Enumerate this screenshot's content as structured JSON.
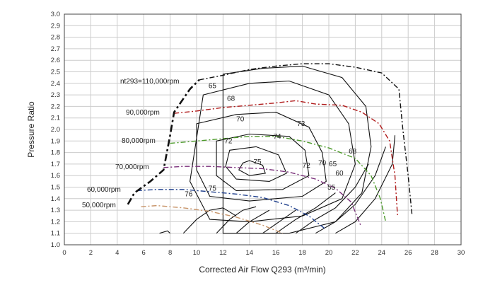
{
  "chart_data": {
    "type": "line",
    "title": "",
    "xlabel": "Corrected Air Flow Q293 (m³/min)",
    "ylabel": "Pressure Ratio",
    "xlim": [
      0,
      30
    ],
    "ylim": [
      1.0,
      3.0
    ],
    "x_ticks": [
      "0",
      "2",
      "4",
      "6",
      "8",
      "10",
      "12",
      "14",
      "16",
      "18",
      "20",
      "22",
      "24",
      "26",
      "28",
      "30"
    ],
    "y_ticks": [
      "1.0",
      "1.1",
      "1.2",
      "1.3",
      "1.4",
      "1.5",
      "1.6",
      "1.7",
      "1.8",
      "1.9",
      "2.0",
      "2.1",
      "2.2",
      "2.3",
      "2.4",
      "2.5",
      "2.6",
      "2.7",
      "2.8",
      "2.9",
      "3.0"
    ],
    "grid": true,
    "speed_lines": [
      {
        "label": "50,000rpm",
        "color": "#c8956a",
        "points": [
          [
            5.8,
            1.33
          ],
          [
            7,
            1.34
          ],
          [
            9,
            1.32
          ],
          [
            11,
            1.29
          ],
          [
            13,
            1.24
          ],
          [
            15,
            1.17
          ],
          [
            16.5,
            1.1
          ]
        ]
      },
      {
        "label": "60,000rpm",
        "color": "#1f3f8c",
        "points": [
          [
            5.5,
            1.47
          ],
          [
            7,
            1.48
          ],
          [
            9,
            1.48
          ],
          [
            11,
            1.46
          ],
          [
            13,
            1.44
          ],
          [
            15,
            1.41
          ],
          [
            17,
            1.34
          ],
          [
            18.5,
            1.25
          ],
          [
            19.7,
            1.14
          ]
        ]
      },
      {
        "label": "70,000rpm",
        "color": "#7a2f7a",
        "points": [
          [
            7.5,
            1.67
          ],
          [
            9,
            1.68
          ],
          [
            11,
            1.68
          ],
          [
            13,
            1.67
          ],
          [
            15,
            1.66
          ],
          [
            17,
            1.63
          ],
          [
            19,
            1.57
          ],
          [
            20.5,
            1.49
          ],
          [
            21.7,
            1.37
          ],
          [
            22.4,
            1.17
          ]
        ]
      },
      {
        "label": "80,000rpm",
        "color": "#4c9a2a",
        "points": [
          [
            8,
            1.88
          ],
          [
            10,
            1.9
          ],
          [
            12,
            1.92
          ],
          [
            14,
            1.94
          ],
          [
            16,
            1.94
          ],
          [
            18,
            1.9
          ],
          [
            20,
            1.84
          ],
          [
            22,
            1.75
          ],
          [
            23.2,
            1.6
          ],
          [
            23.9,
            1.4
          ],
          [
            24.3,
            1.2
          ]
        ]
      },
      {
        "label": "90,000rpm",
        "color": "#b01b1b",
        "points": [
          [
            8.3,
            2.14
          ],
          [
            10,
            2.16
          ],
          [
            12,
            2.19
          ],
          [
            14,
            2.21
          ],
          [
            16,
            2.23
          ],
          [
            17.5,
            2.25
          ],
          [
            19,
            2.22
          ],
          [
            21,
            2.21
          ],
          [
            22.5,
            2.15
          ],
          [
            23.8,
            2.05
          ],
          [
            24.6,
            1.9
          ],
          [
            25,
            1.6
          ],
          [
            25.2,
            1.25
          ]
        ]
      },
      {
        "label": "nt293=110,000rpm",
        "color": "#111111",
        "points": [
          [
            10.2,
            2.43
          ],
          [
            12,
            2.47
          ],
          [
            14,
            2.52
          ],
          [
            16,
            2.55
          ],
          [
            18,
            2.57
          ],
          [
            20,
            2.57
          ],
          [
            22,
            2.54
          ],
          [
            24,
            2.49
          ],
          [
            25.3,
            2.35
          ],
          [
            25.6,
            2.0
          ],
          [
            26,
            1.6
          ],
          [
            26.3,
            1.25
          ]
        ]
      }
    ],
    "surge_line": [
      [
        4.8,
        1.35
      ],
      [
        5.3,
        1.45
      ],
      [
        6.5,
        1.55
      ],
      [
        7.5,
        1.65
      ],
      [
        8,
        1.95
      ],
      [
        8.3,
        2.15
      ],
      [
        9.5,
        2.35
      ],
      [
        10.2,
        2.43
      ]
    ],
    "efficiency_labels": [
      "55",
      "60",
      "65",
      "65",
      "68",
      "68",
      "70",
      "70",
      "72",
      "72",
      "73",
      "74",
      "75",
      "75",
      "76"
    ]
  },
  "annotations": {
    "speed_110": "nt293=110,000rpm",
    "speed_90": "90,000rpm",
    "speed_80": "80,000rpm",
    "speed_70": "70,000rpm",
    "speed_60": "60,000rpm",
    "speed_50": "50,000rpm"
  }
}
